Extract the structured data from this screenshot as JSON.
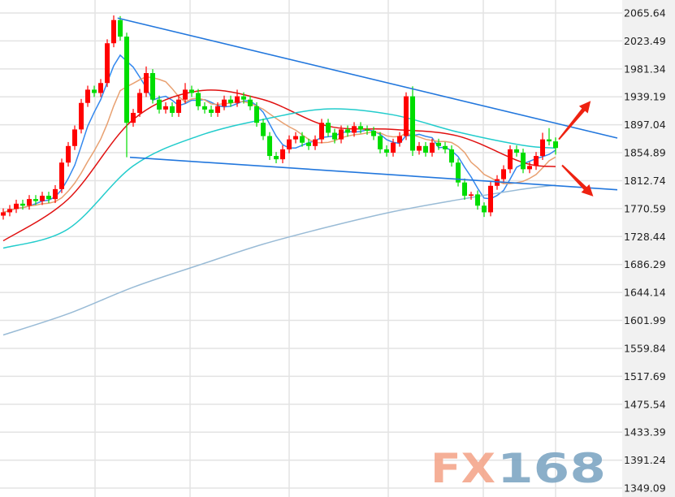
{
  "chart_data": {
    "type": "candlestick",
    "title": "",
    "xlabel": "",
    "ylabel": "",
    "ylim": [
      1349.09,
      2065.64
    ],
    "y_ticks": [
      "2065.64",
      "2023.49",
      "1981.34",
      "1939.19",
      "1897.04",
      "1854.89",
      "1812.74",
      "1770.59",
      "1728.44",
      "1686.29",
      "1644.14",
      "1601.99",
      "1559.84",
      "1517.69",
      "1475.54",
      "1433.39",
      "1391.24",
      "1349.09"
    ],
    "y_axis_position": "right",
    "grid": true,
    "up_color": "#ff0000",
    "down_color": "#00dd00",
    "candles_ohlc": [
      [
        1760,
        1771,
        1754,
        1765
      ],
      [
        1765,
        1776,
        1759,
        1770
      ],
      [
        1770,
        1784,
        1764,
        1778
      ],
      [
        1778,
        1784,
        1769,
        1775
      ],
      [
        1775,
        1791,
        1769,
        1785
      ],
      [
        1785,
        1791,
        1776,
        1782
      ],
      [
        1782,
        1796,
        1776,
        1790
      ],
      [
        1790,
        1796,
        1779,
        1785
      ],
      [
        1785,
        1806,
        1779,
        1800
      ],
      [
        1800,
        1846,
        1794,
        1840
      ],
      [
        1840,
        1871,
        1834,
        1865
      ],
      [
        1865,
        1896,
        1859,
        1890
      ],
      [
        1890,
        1936,
        1884,
        1930
      ],
      [
        1930,
        1956,
        1924,
        1950
      ],
      [
        1950,
        1956,
        1939,
        1945
      ],
      [
        1945,
        1966,
        1939,
        1960
      ],
      [
        1960,
        2026,
        1954,
        2020
      ],
      [
        2020,
        2062,
        2014,
        2055
      ],
      [
        2055,
        2061,
        2024,
        2030
      ],
      [
        2030,
        2036,
        1848,
        1900
      ],
      [
        1900,
        1921,
        1894,
        1915
      ],
      [
        1915,
        1951,
        1909,
        1945
      ],
      [
        1945,
        1985,
        1939,
        1975
      ],
      [
        1975,
        1981,
        1929,
        1935
      ],
      [
        1935,
        1941,
        1914,
        1920
      ],
      [
        1920,
        1931,
        1914,
        1925
      ],
      [
        1925,
        1931,
        1909,
        1915
      ],
      [
        1915,
        1941,
        1909,
        1935
      ],
      [
        1935,
        1960,
        1929,
        1950
      ],
      [
        1950,
        1956,
        1939,
        1945
      ],
      [
        1945,
        1951,
        1919,
        1925
      ],
      [
        1925,
        1931,
        1914,
        1920
      ],
      [
        1920,
        1926,
        1909,
        1915
      ],
      [
        1915,
        1931,
        1909,
        1925
      ],
      [
        1925,
        1941,
        1919,
        1935
      ],
      [
        1935,
        1941,
        1924,
        1930
      ],
      [
        1930,
        1950,
        1924,
        1940
      ],
      [
        1940,
        1946,
        1929,
        1935
      ],
      [
        1935,
        1941,
        1919,
        1925
      ],
      [
        1925,
        1931,
        1894,
        1900
      ],
      [
        1900,
        1906,
        1874,
        1880
      ],
      [
        1880,
        1886,
        1844,
        1850
      ],
      [
        1850,
        1856,
        1839,
        1845
      ],
      [
        1845,
        1866,
        1839,
        1860
      ],
      [
        1860,
        1881,
        1854,
        1875
      ],
      [
        1875,
        1886,
        1869,
        1880
      ],
      [
        1880,
        1886,
        1864,
        1870
      ],
      [
        1870,
        1876,
        1859,
        1865
      ],
      [
        1865,
        1881,
        1859,
        1875
      ],
      [
        1875,
        1906,
        1869,
        1900
      ],
      [
        1900,
        1906,
        1879,
        1885
      ],
      [
        1885,
        1891,
        1869,
        1875
      ],
      [
        1875,
        1896,
        1869,
        1890
      ],
      [
        1890,
        1896,
        1879,
        1885
      ],
      [
        1885,
        1901,
        1879,
        1895
      ],
      [
        1895,
        1901,
        1884,
        1890
      ],
      [
        1890,
        1896,
        1882,
        1888
      ],
      [
        1888,
        1894,
        1874,
        1880
      ],
      [
        1880,
        1886,
        1854,
        1860
      ],
      [
        1860,
        1866,
        1849,
        1855
      ],
      [
        1855,
        1876,
        1849,
        1870
      ],
      [
        1870,
        1886,
        1864,
        1880
      ],
      [
        1880,
        1946,
        1874,
        1940
      ],
      [
        1940,
        1955,
        1850,
        1858
      ],
      [
        1858,
        1871,
        1852,
        1865
      ],
      [
        1865,
        1871,
        1849,
        1855
      ],
      [
        1855,
        1876,
        1849,
        1870
      ],
      [
        1870,
        1876,
        1859,
        1865
      ],
      [
        1865,
        1871,
        1854,
        1860
      ],
      [
        1860,
        1866,
        1834,
        1840
      ],
      [
        1840,
        1846,
        1804,
        1810
      ],
      [
        1810,
        1816,
        1784,
        1790
      ],
      [
        1790,
        1796,
        1784,
        1792
      ],
      [
        1792,
        1798,
        1769,
        1775
      ],
      [
        1775,
        1780,
        1758,
        1765
      ],
      [
        1765,
        1811,
        1759,
        1805
      ],
      [
        1805,
        1821,
        1799,
        1815
      ],
      [
        1815,
        1836,
        1809,
        1830
      ],
      [
        1830,
        1866,
        1824,
        1860
      ],
      [
        1860,
        1866,
        1849,
        1855
      ],
      [
        1855,
        1861,
        1824,
        1830
      ],
      [
        1830,
        1841,
        1824,
        1835
      ],
      [
        1835,
        1856,
        1829,
        1850
      ],
      [
        1850,
        1885,
        1844,
        1875
      ],
      [
        1875,
        1892,
        1866,
        1872
      ],
      [
        1872,
        1878,
        1852,
        1862
      ]
    ],
    "moving_averages": [
      {
        "color": "#3388ee",
        "period": 5
      },
      {
        "color": "#e8a070",
        "period": 10
      },
      {
        "color": "#e01010",
        "samples": [
          [
            0,
            1722
          ],
          [
            10,
            1785
          ],
          [
            20,
            1905
          ],
          [
            30,
            1948
          ],
          [
            40,
            1935
          ],
          [
            50,
            1895
          ],
          [
            60,
            1890
          ],
          [
            70,
            1880
          ],
          [
            80,
            1840
          ],
          [
            85,
            1834
          ]
        ]
      },
      {
        "color": "#22cccc",
        "samples": [
          [
            0,
            1711
          ],
          [
            10,
            1740
          ],
          [
            20,
            1835
          ],
          [
            30,
            1880
          ],
          [
            40,
            1905
          ],
          [
            50,
            1921
          ],
          [
            60,
            1912
          ],
          [
            70,
            1886
          ],
          [
            80,
            1866
          ],
          [
            85,
            1862
          ]
        ]
      },
      {
        "color": "#99bbd6",
        "samples": [
          [
            0,
            1580
          ],
          [
            10,
            1612
          ],
          [
            20,
            1652
          ],
          [
            30,
            1685
          ],
          [
            40,
            1717
          ],
          [
            50,
            1743
          ],
          [
            60,
            1766
          ],
          [
            70,
            1784
          ],
          [
            80,
            1800
          ],
          [
            85,
            1806
          ]
        ]
      }
    ],
    "trendlines": [
      {
        "color": "#2277dd",
        "from": [
          17.6,
          2058
        ],
        "to": [
          94.5,
          1877
        ]
      },
      {
        "color": "#2277dd",
        "from": [
          19.5,
          1848
        ],
        "to": [
          94.5,
          1799
        ]
      }
    ],
    "arrows": [
      {
        "color": "#ee2211",
        "direction": "up",
        "from": [
          85.5,
          1875
        ],
        "to": [
          90.4,
          1933
        ]
      },
      {
        "color": "#ee2211",
        "direction": "down",
        "from": [
          86,
          1836
        ],
        "to": [
          90.8,
          1789
        ]
      }
    ]
  },
  "watermark": {
    "text_a": "FX",
    "text_b": "168",
    "color_a": "#f4a78c",
    "color_b": "#7fa7c4"
  }
}
